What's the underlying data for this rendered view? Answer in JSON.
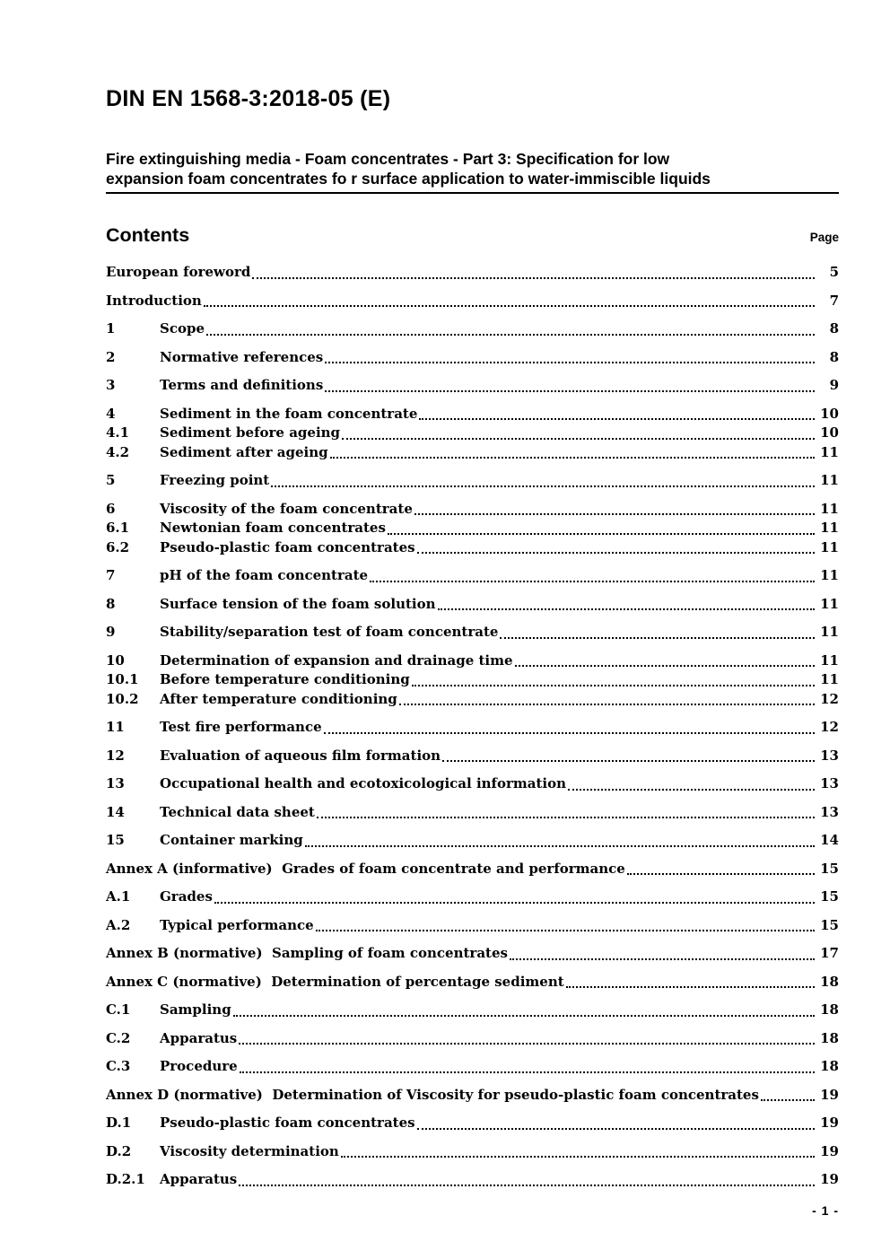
{
  "header": {
    "doc_code": "DIN EN 1568-3:2018-05 (E)",
    "title_lines": [
      "Fire extinguishing media - Foam concentrates - Part 3: Specification for low",
      "expansion foam concentrates fo r surface application to water-immiscible liquids"
    ]
  },
  "contents": {
    "heading": "Contents",
    "page_column_label": "Page"
  },
  "toc_entries": [
    {
      "num": "",
      "label": "European foreword",
      "page": "5",
      "tight": false
    },
    {
      "num": "",
      "label": "Introduction",
      "page": "7",
      "tight": false
    },
    {
      "num": "1",
      "label": "Scope",
      "page": "8",
      "tight": false
    },
    {
      "num": "2",
      "label": "Normative references",
      "page": "8",
      "tight": false
    },
    {
      "num": "3",
      "label": "Terms and definitions",
      "page": "9",
      "tight": false
    },
    {
      "num": "4",
      "label": "Sediment in the foam concentrate",
      "page": "10",
      "tight": false
    },
    {
      "num": "4.1",
      "label": "Sediment before ageing",
      "page": "10",
      "tight": true
    },
    {
      "num": "4.2",
      "label": "Sediment after ageing",
      "page": "11",
      "tight": true
    },
    {
      "num": "5",
      "label": "Freezing point",
      "page": "11",
      "tight": false
    },
    {
      "num": "6",
      "label": "Viscosity of the foam concentrate",
      "page": "11",
      "tight": false
    },
    {
      "num": "6.1",
      "label": "Newtonian foam concentrates",
      "page": "11",
      "tight": true
    },
    {
      "num": "6.2",
      "label": "Pseudo-plastic foam concentrates",
      "page": "11",
      "tight": true
    },
    {
      "num": "7",
      "label": "pH of the foam concentrate",
      "page": "11",
      "tight": false
    },
    {
      "num": "8",
      "label": "Surface tension of the foam solution",
      "page": "11",
      "tight": false
    },
    {
      "num": "9",
      "label": "Stability/separation test of foam concentrate",
      "page": "11",
      "tight": false
    },
    {
      "num": "10",
      "label": "Determination of expansion and drainage time",
      "page": "11",
      "tight": false
    },
    {
      "num": "10.1",
      "label": "Before temperature conditioning",
      "page": "11",
      "tight": true
    },
    {
      "num": "10.2",
      "label": "After temperature conditioning",
      "page": "12",
      "tight": true
    },
    {
      "num": "11",
      "label": "Test fire performance",
      "page": "12",
      "tight": false
    },
    {
      "num": "12",
      "label": "Evaluation of aqueous film formation",
      "page": "13",
      "tight": false
    },
    {
      "num": "13",
      "label": "Occupational health and ecotoxicological information",
      "page": "13",
      "tight": false
    },
    {
      "num": "14",
      "label": "Technical data sheet",
      "page": "13",
      "tight": false
    },
    {
      "num": "15",
      "label": "Container marking",
      "page": "14",
      "tight": false
    },
    {
      "num": "",
      "label": "Annex A (informative)  Grades of foam concentrate and performance",
      "page": "15",
      "tight": false
    },
    {
      "num": "A.1",
      "label": "Grades",
      "page": "15",
      "tight": false
    },
    {
      "num": "A.2",
      "label": "Typical performance",
      "page": "15",
      "tight": false
    },
    {
      "num": "",
      "label": "Annex B (normative)  Sampling of foam concentrates",
      "page": "17",
      "tight": false
    },
    {
      "num": "",
      "label": "Annex C (normative)  Determination of percentage sediment",
      "page": "18",
      "tight": false
    },
    {
      "num": "C.1",
      "label": "Sampling",
      "page": "18",
      "tight": false
    },
    {
      "num": "C.2",
      "label": "Apparatus",
      "page": "18",
      "tight": false
    },
    {
      "num": "C.3",
      "label": "Procedure",
      "page": "18",
      "tight": false
    },
    {
      "num": "",
      "label": "Annex D (normative)  Determination of Viscosity for pseudo-plastic foam concentrates",
      "page": "19",
      "tight": false
    },
    {
      "num": "D.1",
      "label": "Pseudo-plastic foam concentrates",
      "page": "19",
      "tight": false
    },
    {
      "num": "D.2",
      "label": "Viscosity determination",
      "page": "19",
      "tight": false
    },
    {
      "num": "D.2.1",
      "label": "Apparatus",
      "page": "19",
      "tight": false
    }
  ],
  "footer": {
    "page_number": "- 1 -"
  }
}
